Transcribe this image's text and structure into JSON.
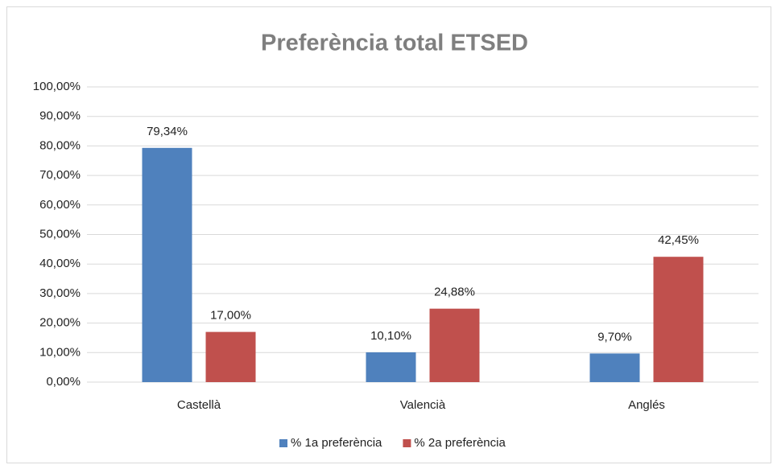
{
  "chart_data": {
    "type": "bar",
    "title": "Preferència total ETSED",
    "categories": [
      "Castellà",
      "Valencià",
      "Anglés"
    ],
    "series": [
      {
        "name": "% 1a preferència",
        "color": "#4f81bd",
        "values": [
          79.34,
          10.1,
          9.7
        ],
        "value_labels": [
          "79,34%",
          "10,10%",
          "9,70%"
        ]
      },
      {
        "name": "% 2a preferència",
        "color": "#c0504d",
        "values": [
          17.0,
          24.88,
          42.45
        ],
        "value_labels": [
          "17,00%",
          "24,88%",
          "42,45%"
        ]
      }
    ],
    "ylim": [
      0,
      100
    ],
    "yticks": [
      {
        "value": 0,
        "label": "0,00%"
      },
      {
        "value": 10,
        "label": "10,00%"
      },
      {
        "value": 20,
        "label": "20,00%"
      },
      {
        "value": 30,
        "label": "30,00%"
      },
      {
        "value": 40,
        "label": "40,00%"
      },
      {
        "value": 50,
        "label": "50,00%"
      },
      {
        "value": 60,
        "label": "60,00%"
      },
      {
        "value": 70,
        "label": "70,00%"
      },
      {
        "value": 80,
        "label": "80,00%"
      },
      {
        "value": 90,
        "label": "90,00%"
      },
      {
        "value": 100,
        "label": "100,00%"
      }
    ],
    "grid": true,
    "legend": "bottom"
  }
}
